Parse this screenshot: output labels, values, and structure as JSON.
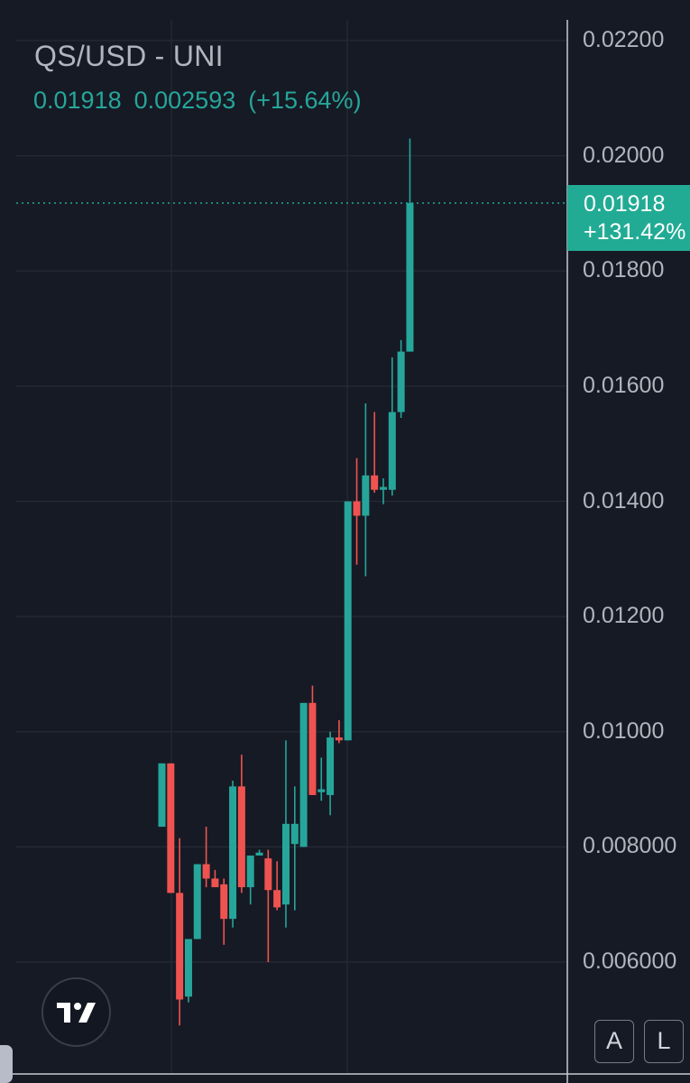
{
  "header": {
    "symbol_title": "QS/USD - UNI",
    "last_price": "0.01918",
    "change": "0.002593",
    "change_pct": "(+15.64%)"
  },
  "price_tag": {
    "price": "0.01918",
    "pct_from_start": "+131.42%"
  },
  "buttons": {
    "auto_scale": "A",
    "log_scale": "L"
  },
  "colors": {
    "background": "#161a25",
    "grid": "#262a35",
    "up": "#26a69a",
    "down": "#ef5350",
    "axis_text": "#b2b5be",
    "tag": "#22ab94"
  },
  "chart_data": {
    "type": "candlestick",
    "title": "QS/USD - UNI",
    "y_ticks": [
      "0.006000",
      "0.008000",
      "0.01000",
      "0.01200",
      "0.01400",
      "0.01600",
      "0.01800",
      "0.02000",
      "0.02200"
    ],
    "y_tick_values": [
      0.006,
      0.008,
      0.01,
      0.012,
      0.014,
      0.016,
      0.018,
      0.02,
      0.022
    ],
    "ylim": [
      0.0048,
      0.0228
    ],
    "last_price": 0.01918,
    "grid": true,
    "candles": [
      {
        "o": 0.00835,
        "h": 0.00945,
        "l": 0.00835,
        "c": 0.00945
      },
      {
        "o": 0.00945,
        "h": 0.00945,
        "l": 0.0072,
        "c": 0.0072
      },
      {
        "o": 0.0072,
        "h": 0.00815,
        "l": 0.0049,
        "c": 0.00535
      },
      {
        "o": 0.0054,
        "h": 0.0064,
        "l": 0.0053,
        "c": 0.0064
      },
      {
        "o": 0.0064,
        "h": 0.0077,
        "l": 0.0064,
        "c": 0.0077
      },
      {
        "o": 0.0077,
        "h": 0.00835,
        "l": 0.0073,
        "c": 0.00745
      },
      {
        "o": 0.00745,
        "h": 0.0076,
        "l": 0.0073,
        "c": 0.0073
      },
      {
        "o": 0.00735,
        "h": 0.00745,
        "l": 0.0063,
        "c": 0.00675
      },
      {
        "o": 0.00675,
        "h": 0.00915,
        "l": 0.0066,
        "c": 0.00905
      },
      {
        "o": 0.00905,
        "h": 0.0096,
        "l": 0.0072,
        "c": 0.0073
      },
      {
        "o": 0.0073,
        "h": 0.00785,
        "l": 0.007,
        "c": 0.00785
      },
      {
        "o": 0.00785,
        "h": 0.00795,
        "l": 0.00785,
        "c": 0.0079
      },
      {
        "o": 0.0078,
        "h": 0.00795,
        "l": 0.006,
        "c": 0.00725
      },
      {
        "o": 0.00725,
        "h": 0.00775,
        "l": 0.0069,
        "c": 0.00695
      },
      {
        "o": 0.007,
        "h": 0.00985,
        "l": 0.0066,
        "c": 0.0084
      },
      {
        "o": 0.00805,
        "h": 0.00905,
        "l": 0.0069,
        "c": 0.0084
      },
      {
        "o": 0.008,
        "h": 0.0105,
        "l": 0.008,
        "c": 0.0105
      },
      {
        "o": 0.0105,
        "h": 0.0108,
        "l": 0.0089,
        "c": 0.0089
      },
      {
        "o": 0.00895,
        "h": 0.00955,
        "l": 0.0088,
        "c": 0.009
      },
      {
        "o": 0.0089,
        "h": 0.01,
        "l": 0.00855,
        "c": 0.0099
      },
      {
        "o": 0.0099,
        "h": 0.0102,
        "l": 0.0098,
        "c": 0.00985
      },
      {
        "o": 0.00985,
        "h": 0.014,
        "l": 0.00985,
        "c": 0.014
      },
      {
        "o": 0.014,
        "h": 0.01475,
        "l": 0.0129,
        "c": 0.01375
      },
      {
        "o": 0.01375,
        "h": 0.0157,
        "l": 0.0127,
        "c": 0.01445
      },
      {
        "o": 0.01445,
        "h": 0.01555,
        "l": 0.01415,
        "c": 0.0142
      },
      {
        "o": 0.0142,
        "h": 0.0144,
        "l": 0.01395,
        "c": 0.01425
      },
      {
        "o": 0.0142,
        "h": 0.0165,
        "l": 0.0141,
        "c": 0.01555
      },
      {
        "o": 0.01555,
        "h": 0.0168,
        "l": 0.01545,
        "c": 0.0166
      },
      {
        "o": 0.0166,
        "h": 0.0203,
        "l": 0.0166,
        "c": 0.01918
      }
    ]
  }
}
